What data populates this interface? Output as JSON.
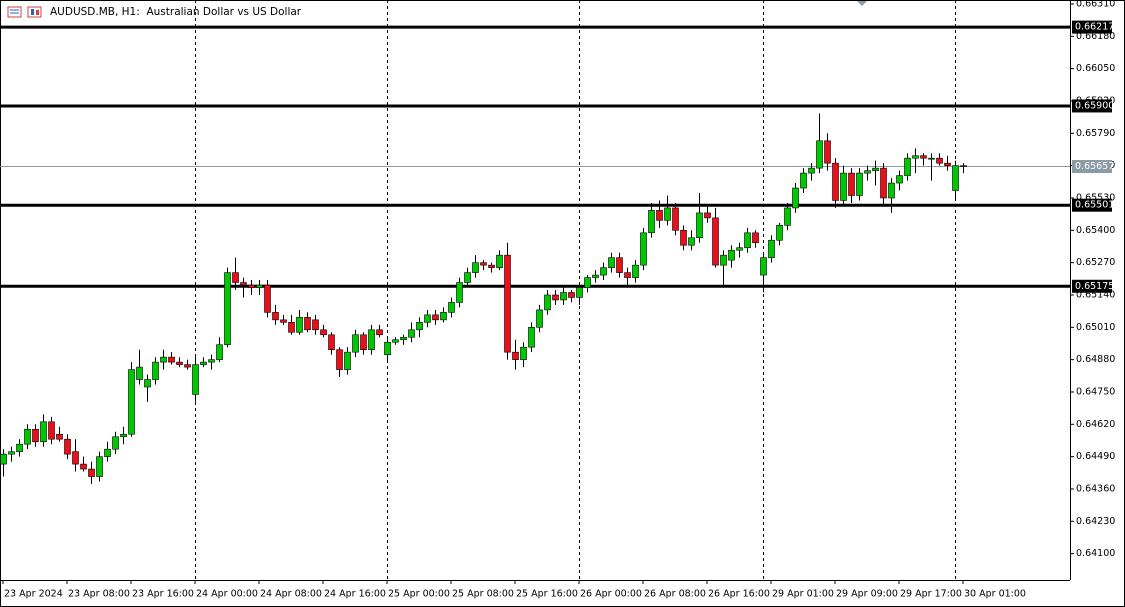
{
  "chart_data": {
    "type": "candlestick",
    "title": "AUDUSD.MB, H1:  Australian Dollar vs US Dollar",
    "categories": [
      "23 Apr 2024",
      null,
      null,
      null,
      null,
      null,
      null,
      null,
      "23 Apr 08:00",
      null,
      null,
      null,
      null,
      null,
      null,
      null,
      "23 Apr 16:00",
      null,
      null,
      null,
      null,
      null,
      null,
      null,
      "24 Apr 00:00",
      null,
      null,
      null,
      null,
      null,
      null,
      null,
      "24 Apr 08:00",
      null,
      null,
      null,
      null,
      null,
      null,
      null,
      "24 Apr 16:00",
      null,
      null,
      null,
      null,
      null,
      null,
      null,
      "25 Apr 00:00",
      null,
      null,
      null,
      null,
      null,
      null,
      null,
      "25 Apr 08:00",
      null,
      null,
      null,
      null,
      null,
      null,
      null,
      "25 Apr 16:00",
      null,
      null,
      null,
      null,
      null,
      null,
      null,
      "26 Apr 00:00",
      null,
      null,
      null,
      null,
      null,
      null,
      null,
      "26 Apr 08:00",
      null,
      null,
      null,
      null,
      null,
      null,
      null,
      "26 Apr 16:00",
      null,
      null,
      null,
      null,
      null,
      null,
      null,
      "29 Apr 01:00",
      null,
      null,
      null,
      null,
      null,
      null,
      null,
      "29 Apr 09:00",
      null,
      null,
      null,
      null,
      null,
      null,
      null,
      "29 Apr 17:00",
      null,
      null,
      null,
      null,
      null,
      null,
      null,
      "30 Apr 01:00"
    ],
    "open": [
      0.6446,
      0.645,
      0.6451,
      0.6454,
      0.646,
      0.6455,
      0.6463,
      0.6458,
      0.6456,
      0.6451,
      0.6446,
      0.6444,
      0.6441,
      0.6449,
      0.6452,
      0.6457,
      0.6458,
      0.648,
      0.6477,
      0.648,
      0.6487,
      0.6489,
      0.6487,
      0.6486,
      0.6474,
      0.6486,
      0.6487,
      0.6488,
      0.6494,
      0.6523,
      0.6519,
      0.6518,
      0.6517,
      0.6518,
      0.6507,
      0.6504,
      0.6503,
      0.6499,
      0.6505,
      0.6504,
      0.65,
      0.6498,
      0.6492,
      0.6484,
      0.6491,
      0.6498,
      0.6492,
      0.65,
      0.649,
      0.6495,
      0.6496,
      0.6497,
      0.65,
      0.6503,
      0.6506,
      0.6504,
      0.6507,
      0.6511,
      0.6519,
      0.6523,
      0.6527,
      0.6526,
      0.6525,
      0.653,
      0.6491,
      0.6488,
      0.6493,
      0.6501,
      0.6508,
      0.6514,
      0.6512,
      0.6515,
      0.6513,
      0.6517,
      0.6521,
      0.6522,
      0.6525,
      0.6529,
      0.6523,
      0.6521,
      0.6526,
      0.6539,
      0.6548,
      0.6544,
      0.6549,
      0.654,
      0.6534,
      0.6537,
      0.6547,
      0.6545,
      0.6526,
      0.6528,
      0.6532,
      0.6533,
      0.6539,
      0.6522,
      0.6529,
      0.6536,
      0.6542,
      0.6549,
      0.6557,
      0.6563,
      0.6565,
      0.6576,
      0.6567,
      0.6552,
      0.6563,
      0.6554,
      0.6563,
      0.6564,
      0.6565,
      0.6553,
      0.6559,
      0.6562,
      0.6569,
      0.657,
      0.6569,
      0.6569,
      0.6567,
      0.6556,
      0.6566
    ],
    "high": [
      0.6452,
      0.6453,
      0.6456,
      0.6462,
      0.6462,
      0.6466,
      0.6465,
      0.6461,
      0.6458,
      0.6456,
      0.6449,
      0.6447,
      0.6451,
      0.6455,
      0.6459,
      0.6461,
      0.6487,
      0.6492,
      0.6482,
      0.6489,
      0.6492,
      0.6491,
      0.6489,
      0.6488,
      0.6489,
      0.6489,
      0.649,
      0.6497,
      0.6525,
      0.6529,
      0.6521,
      0.652,
      0.652,
      0.652,
      0.651,
      0.6506,
      0.6506,
      0.6508,
      0.6507,
      0.6506,
      0.6502,
      0.6499,
      0.6493,
      0.6493,
      0.65,
      0.6499,
      0.6502,
      0.6502,
      0.6497,
      0.6497,
      0.6498,
      0.6503,
      0.6505,
      0.6508,
      0.6508,
      0.6509,
      0.6513,
      0.6521,
      0.6525,
      0.653,
      0.6528,
      0.6527,
      0.6532,
      0.6535,
      0.6496,
      0.6495,
      0.6503,
      0.651,
      0.6516,
      0.6516,
      0.6517,
      0.6516,
      0.6519,
      0.6522,
      0.6524,
      0.6527,
      0.6531,
      0.6531,
      0.6525,
      0.6528,
      0.6541,
      0.6551,
      0.6552,
      0.6554,
      0.6551,
      0.6542,
      0.654,
      0.6555,
      0.655,
      0.6549,
      0.6532,
      0.6534,
      0.6535,
      0.6541,
      0.654,
      0.653,
      0.6538,
      0.6543,
      0.6551,
      0.6559,
      0.6565,
      0.6567,
      0.6587,
      0.6579,
      0.6569,
      0.6566,
      0.6565,
      0.6565,
      0.6566,
      0.6568,
      0.6567,
      0.6561,
      0.6564,
      0.6571,
      0.6573,
      0.6571,
      0.6571,
      0.6571,
      0.657,
      0.6568,
      0.6567
    ],
    "low": [
      0.6441,
      0.6447,
      0.6449,
      0.6452,
      0.6453,
      0.6453,
      0.6454,
      0.6455,
      0.6448,
      0.6443,
      0.6443,
      0.6438,
      0.6439,
      0.6447,
      0.645,
      0.6454,
      0.6457,
      0.6478,
      0.6471,
      0.6478,
      0.6484,
      0.6486,
      0.6485,
      0.6484,
      0.6471,
      0.6485,
      0.6484,
      0.6487,
      0.6493,
      0.6516,
      0.6513,
      0.6514,
      0.6514,
      0.6505,
      0.6502,
      0.6502,
      0.6498,
      0.6498,
      0.6499,
      0.6498,
      0.6497,
      0.649,
      0.6481,
      0.6482,
      0.6489,
      0.649,
      0.649,
      0.6497,
      0.6487,
      0.6494,
      0.6494,
      0.6495,
      0.6497,
      0.6501,
      0.6502,
      0.6503,
      0.6505,
      0.6509,
      0.6517,
      0.6521,
      0.6524,
      0.6523,
      0.6524,
      0.6488,
      0.6484,
      0.6485,
      0.6491,
      0.6499,
      0.6506,
      0.651,
      0.651,
      0.6511,
      0.651,
      0.6515,
      0.6519,
      0.652,
      0.6523,
      0.6521,
      0.6518,
      0.6519,
      0.6524,
      0.6537,
      0.6541,
      0.6542,
      0.6538,
      0.6532,
      0.6532,
      0.6535,
      0.6543,
      0.6525,
      0.6518,
      0.6525,
      0.6529,
      0.6531,
      0.6533,
      0.6515,
      0.6527,
      0.6534,
      0.654,
      0.6547,
      0.6555,
      0.656,
      0.6563,
      0.6564,
      0.6549,
      0.655,
      0.6551,
      0.6552,
      0.656,
      0.6558,
      0.655,
      0.6547,
      0.6556,
      0.656,
      0.6563,
      0.6566,
      0.656,
      0.6566,
      0.6564,
      0.6552,
      0.6563
    ],
    "close": [
      0.645,
      0.6451,
      0.6454,
      0.646,
      0.6455,
      0.6463,
      0.6456,
      0.6456,
      0.645,
      0.6446,
      0.6444,
      0.6441,
      0.6449,
      0.6452,
      0.6457,
      0.6458,
      0.6484,
      0.6485,
      0.648,
      0.6487,
      0.6489,
      0.6487,
      0.6486,
      0.6485,
      0.6486,
      0.6487,
      0.6488,
      0.6494,
      0.6523,
      0.6519,
      0.6518,
      0.6517,
      0.6518,
      0.6507,
      0.6504,
      0.6503,
      0.6499,
      0.6505,
      0.65,
      0.65,
      0.6498,
      0.6492,
      0.6484,
      0.6491,
      0.6498,
      0.6492,
      0.65,
      0.6498,
      0.6495,
      0.6496,
      0.6497,
      0.65,
      0.6503,
      0.6506,
      0.6504,
      0.6507,
      0.6511,
      0.6519,
      0.6523,
      0.6527,
      0.6526,
      0.6525,
      0.653,
      0.6491,
      0.6488,
      0.6493,
      0.6501,
      0.6508,
      0.6514,
      0.6512,
      0.6515,
      0.6513,
      0.6517,
      0.6521,
      0.6522,
      0.6525,
      0.6529,
      0.6523,
      0.6521,
      0.6526,
      0.6539,
      0.6548,
      0.6544,
      0.6549,
      0.654,
      0.6534,
      0.6537,
      0.6547,
      0.6545,
      0.6526,
      0.653,
      0.6532,
      0.6533,
      0.6539,
      0.6535,
      0.6529,
      0.6536,
      0.6542,
      0.6549,
      0.6557,
      0.6563,
      0.6565,
      0.6576,
      0.6567,
      0.6552,
      0.6563,
      0.6554,
      0.6563,
      0.6564,
      0.6565,
      0.6553,
      0.6559,
      0.6562,
      0.6569,
      0.657,
      0.6569,
      0.6569,
      0.6567,
      0.6566,
      0.6566,
      0.65657
    ],
    "up_color": "#00c800",
    "down_color": "#e8101a",
    "wick_color": "#000000",
    "ylim": [
      0.63994,
      0.66326
    ],
    "yticks": [
      {
        "value": 0.6631,
        "label": "0.66310"
      },
      {
        "value": 0.6618,
        "label": "0.66180"
      },
      {
        "value": 0.6605,
        "label": "0.66050"
      },
      {
        "value": 0.6592,
        "label": "0.65920"
      },
      {
        "value": 0.6579,
        "label": "0.65790"
      },
      {
        "value": 0.6566,
        "label": "0.65660"
      },
      {
        "value": 0.6553,
        "label": "0.65530"
      },
      {
        "value": 0.654,
        "label": "0.65400"
      },
      {
        "value": 0.6527,
        "label": "0.65270"
      },
      {
        "value": 0.6514,
        "label": "0.65140"
      },
      {
        "value": 0.6501,
        "label": "0.65010"
      },
      {
        "value": 0.6488,
        "label": "0.64880"
      },
      {
        "value": 0.6475,
        "label": "0.64750"
      },
      {
        "value": 0.6462,
        "label": "0.64620"
      },
      {
        "value": 0.6449,
        "label": "0.64490"
      },
      {
        "value": 0.6436,
        "label": "0.64360"
      },
      {
        "value": 0.6423,
        "label": "0.64230"
      },
      {
        "value": 0.641,
        "label": "0.64100"
      }
    ],
    "levels": [
      0.66217,
      {
        "value": 0.659,
        "label": "0.65900"
      },
      0.65501,
      0.65175
    ],
    "bid": 0.65657,
    "bid_color": "#8c9aa5",
    "period_separators": [
      24,
      48,
      72,
      95,
      119
    ]
  }
}
